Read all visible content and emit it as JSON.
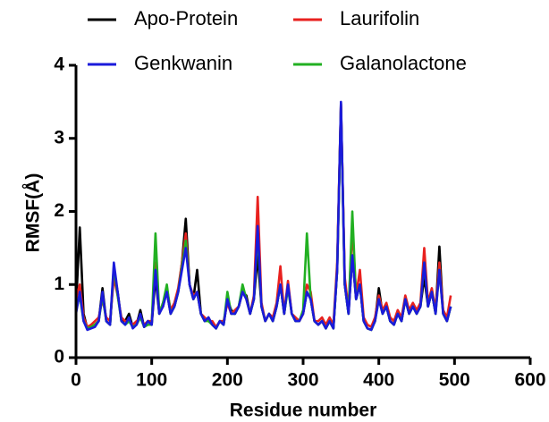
{
  "chart_data": {
    "type": "line",
    "xlabel": "Residue number",
    "ylabel": "RMSF(Å)",
    "xlim": [
      0,
      600
    ],
    "xticks": [
      0,
      100,
      200,
      300,
      400,
      500,
      600
    ],
    "ylim": [
      0,
      4
    ],
    "yticks": [
      0,
      1,
      2,
      3,
      4
    ],
    "x": [
      0,
      5,
      10,
      15,
      20,
      25,
      30,
      35,
      40,
      45,
      50,
      55,
      60,
      65,
      70,
      75,
      80,
      85,
      90,
      95,
      100,
      105,
      110,
      115,
      120,
      125,
      130,
      135,
      140,
      145,
      150,
      155,
      160,
      165,
      170,
      175,
      180,
      185,
      190,
      195,
      200,
      205,
      210,
      215,
      220,
      225,
      230,
      235,
      240,
      245,
      250,
      255,
      260,
      265,
      270,
      275,
      280,
      285,
      290,
      295,
      300,
      305,
      310,
      315,
      320,
      325,
      330,
      335,
      340,
      345,
      350,
      355,
      360,
      365,
      370,
      375,
      380,
      385,
      390,
      395,
      400,
      405,
      410,
      415,
      420,
      425,
      430,
      435,
      440,
      445,
      450,
      455,
      460,
      465,
      470,
      475,
      480,
      485,
      490,
      495
    ],
    "series": [
      {
        "name": "Apo-Protein",
        "color": "#000000",
        "values": [
          0.7,
          1.78,
          0.6,
          0.4,
          0.42,
          0.45,
          0.5,
          0.95,
          0.5,
          0.45,
          1.2,
          0.9,
          0.5,
          0.5,
          0.6,
          0.42,
          0.45,
          0.65,
          0.42,
          0.5,
          0.45,
          1.1,
          0.6,
          0.75,
          0.9,
          0.6,
          0.7,
          0.9,
          1.3,
          1.9,
          1.0,
          0.8,
          1.2,
          0.6,
          0.5,
          0.55,
          0.45,
          0.4,
          0.5,
          0.45,
          0.8,
          0.65,
          0.6,
          0.7,
          0.9,
          0.85,
          0.6,
          0.8,
          1.4,
          0.7,
          0.5,
          0.6,
          0.5,
          0.7,
          1.0,
          0.6,
          1.0,
          0.6,
          0.5,
          0.5,
          0.6,
          0.9,
          0.8,
          0.5,
          0.45,
          0.5,
          0.4,
          0.5,
          0.4,
          1.2,
          3.48,
          1.0,
          0.6,
          1.4,
          0.8,
          1.0,
          0.5,
          0.4,
          0.38,
          0.5,
          0.95,
          0.6,
          0.7,
          0.5,
          0.45,
          0.6,
          0.5,
          0.8,
          0.6,
          0.7,
          0.6,
          0.7,
          1.1,
          0.7,
          0.9,
          0.6,
          1.52,
          0.6,
          0.5,
          0.7
        ]
      },
      {
        "name": "Laurifolin",
        "color": "#e8211f",
        "values": [
          0.8,
          1.0,
          0.55,
          0.42,
          0.45,
          0.5,
          0.55,
          0.8,
          0.55,
          0.5,
          1.1,
          0.85,
          0.55,
          0.5,
          0.5,
          0.45,
          0.5,
          0.55,
          0.45,
          0.5,
          0.5,
          1.3,
          0.65,
          0.7,
          0.95,
          0.65,
          0.75,
          0.95,
          1.3,
          1.7,
          1.0,
          0.85,
          0.9,
          0.6,
          0.55,
          0.5,
          0.5,
          0.42,
          0.5,
          0.5,
          0.75,
          0.6,
          0.65,
          0.7,
          0.95,
          0.8,
          0.6,
          0.85,
          2.2,
          0.75,
          0.5,
          0.6,
          0.55,
          0.75,
          1.25,
          0.6,
          1.05,
          0.6,
          0.55,
          0.5,
          0.6,
          1.0,
          0.9,
          0.5,
          0.5,
          0.55,
          0.45,
          0.55,
          0.45,
          1.3,
          3.45,
          1.1,
          0.65,
          1.8,
          0.85,
          1.2,
          0.55,
          0.45,
          0.42,
          0.55,
          0.85,
          0.65,
          0.75,
          0.55,
          0.5,
          0.65,
          0.55,
          0.85,
          0.65,
          0.75,
          0.65,
          0.75,
          1.5,
          0.75,
          0.95,
          0.65,
          1.3,
          0.65,
          0.55,
          0.85
        ]
      },
      {
        "name": "Genkwanin",
        "color": "#1a1adb",
        "values": [
          0.6,
          0.9,
          0.5,
          0.38,
          0.4,
          0.42,
          0.5,
          0.9,
          0.5,
          0.45,
          1.3,
          0.9,
          0.5,
          0.45,
          0.55,
          0.4,
          0.45,
          0.6,
          0.42,
          0.5,
          0.45,
          1.2,
          0.6,
          0.7,
          0.9,
          0.6,
          0.7,
          0.9,
          1.2,
          1.5,
          1.0,
          0.8,
          0.9,
          0.6,
          0.5,
          0.55,
          0.45,
          0.4,
          0.5,
          0.45,
          0.8,
          0.6,
          0.6,
          0.7,
          0.9,
          0.8,
          0.6,
          0.8,
          1.8,
          0.7,
          0.5,
          0.6,
          0.5,
          0.7,
          1.0,
          0.6,
          1.0,
          0.6,
          0.5,
          0.5,
          0.6,
          0.9,
          0.8,
          0.5,
          0.45,
          0.5,
          0.4,
          0.5,
          0.4,
          1.2,
          3.5,
          1.0,
          0.6,
          1.4,
          0.8,
          1.0,
          0.5,
          0.4,
          0.38,
          0.5,
          0.8,
          0.6,
          0.7,
          0.5,
          0.45,
          0.6,
          0.5,
          0.8,
          0.6,
          0.7,
          0.6,
          0.7,
          1.3,
          0.7,
          0.9,
          0.6,
          1.2,
          0.6,
          0.5,
          0.7
        ]
      },
      {
        "name": "Galanolactone",
        "color": "#22b022",
        "values": [
          0.65,
          0.85,
          0.5,
          0.4,
          0.42,
          0.45,
          0.5,
          0.85,
          0.5,
          0.45,
          1.25,
          0.85,
          0.5,
          0.45,
          0.5,
          0.42,
          0.45,
          0.55,
          0.42,
          0.45,
          0.45,
          1.7,
          0.6,
          0.75,
          1.0,
          0.6,
          0.7,
          0.9,
          1.25,
          1.6,
          1.0,
          0.8,
          0.9,
          0.6,
          0.5,
          0.5,
          0.45,
          0.4,
          0.5,
          0.45,
          0.9,
          0.6,
          0.6,
          0.7,
          1.0,
          0.8,
          0.6,
          0.8,
          1.7,
          0.7,
          0.5,
          0.6,
          0.5,
          0.7,
          1.0,
          0.6,
          0.95,
          0.6,
          0.5,
          0.5,
          0.65,
          1.7,
          0.8,
          0.5,
          0.45,
          0.5,
          0.4,
          0.5,
          0.4,
          1.2,
          3.4,
          1.0,
          0.6,
          2.0,
          0.8,
          1.0,
          0.5,
          0.4,
          0.38,
          0.5,
          0.8,
          0.6,
          0.7,
          0.5,
          0.45,
          0.6,
          0.5,
          0.8,
          0.6,
          0.7,
          0.6,
          0.7,
          1.3,
          0.7,
          0.9,
          0.6,
          1.2,
          0.6,
          0.5,
          0.7
        ]
      }
    ]
  }
}
